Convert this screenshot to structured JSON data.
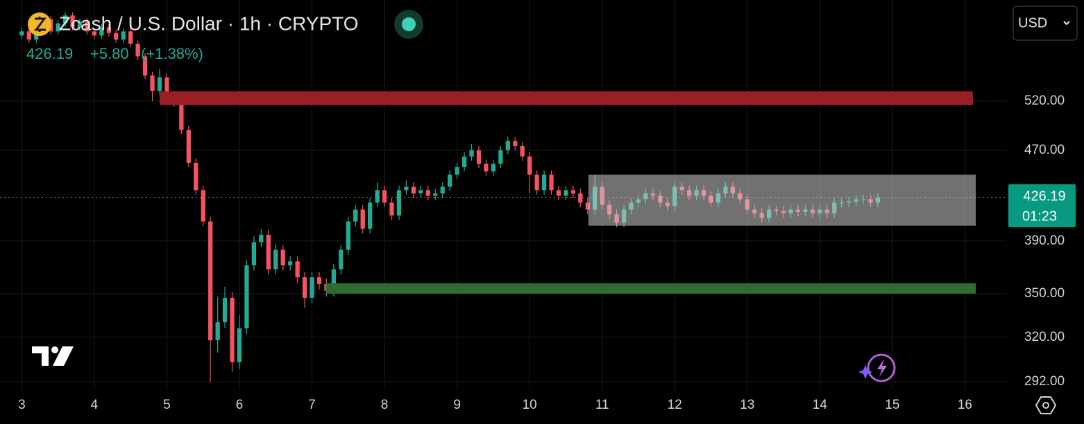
{
  "chart_data": {
    "type": "candlestick",
    "title": "Zcash / U.S. Dollar · 1h · CRYPTO",
    "last_price": 426.19,
    "change": "+5.80",
    "change_percent": "(+1.38%)",
    "countdown": "01:23",
    "currency": "USD",
    "up_color": "#22ab94",
    "down_color": "#f7525f",
    "x": [
      3.0,
      3.1,
      3.2,
      3.3,
      3.4,
      3.5,
      3.6,
      3.7,
      3.8,
      3.9,
      4.0,
      4.1,
      4.2,
      4.3,
      4.4,
      4.5,
      4.6,
      4.7,
      4.8,
      4.9,
      5.0,
      5.1,
      5.2,
      5.3,
      5.4,
      5.5,
      5.6,
      5.7,
      5.8,
      5.9,
      6.0,
      6.1,
      6.2,
      6.3,
      6.4,
      6.5,
      6.6,
      6.7,
      6.8,
      6.9,
      7.0,
      7.1,
      7.2,
      7.3,
      7.4,
      7.5,
      7.6,
      7.7,
      7.8,
      7.9,
      8.0,
      8.1,
      8.2,
      8.3,
      8.4,
      8.5,
      8.6,
      8.7,
      8.8,
      8.9,
      9.0,
      9.1,
      9.2,
      9.3,
      9.4,
      9.5,
      9.6,
      9.7,
      9.8,
      9.9,
      10.0,
      10.1,
      10.2,
      10.3,
      10.4,
      10.5,
      10.6,
      10.7,
      10.8,
      10.9,
      11.0,
      11.1,
      11.2,
      11.3,
      11.4,
      11.5,
      11.6,
      11.7,
      11.8,
      11.9,
      12.0,
      12.1,
      12.2,
      12.3,
      12.4,
      12.5,
      12.6,
      12.7,
      12.8,
      12.9,
      13.0,
      13.1,
      13.2,
      13.3,
      13.4,
      13.5,
      13.6,
      13.7,
      13.8,
      13.9,
      14.0,
      14.1,
      14.2,
      14.3,
      14.4,
      14.5,
      14.6,
      14.7,
      14.8
    ],
    "open": [
      595,
      600,
      590,
      605,
      615,
      600,
      610,
      620,
      605,
      612,
      600,
      595,
      605,
      598,
      590,
      600,
      585,
      570,
      548,
      531,
      546,
      527,
      518,
      490,
      458,
      433,
      406,
      318,
      330,
      347,
      304,
      326,
      371,
      389,
      395,
      368,
      383,
      371,
      374,
      362,
      347,
      362,
      357,
      352,
      368,
      383,
      406,
      416,
      400,
      422,
      433,
      422,
      411,
      433,
      436,
      430,
      433,
      428,
      430,
      436,
      447,
      454,
      464,
      470,
      457,
      450,
      457,
      470,
      479,
      474,
      464,
      447,
      433,
      447,
      433,
      428,
      433,
      430,
      422,
      416,
      436,
      420,
      412,
      405,
      416,
      422,
      425,
      430,
      428,
      422,
      419,
      436,
      433,
      428,
      433,
      428,
      422,
      430,
      436,
      430,
      425,
      416,
      413,
      409,
      416,
      415,
      413,
      416,
      414,
      416,
      413,
      416,
      413,
      422,
      422,
      423,
      425,
      425,
      422
    ],
    "high": [
      604,
      604,
      609,
      619,
      619,
      614,
      624,
      624,
      616,
      616,
      604,
      609,
      609,
      602,
      604,
      604,
      589,
      574,
      552,
      556,
      550,
      531,
      522,
      494,
      462,
      437,
      410,
      348,
      355,
      351,
      335,
      375,
      394,
      400,
      399,
      388,
      387,
      378,
      378,
      366,
      366,
      366,
      361,
      372,
      387,
      410,
      420,
      420,
      426,
      440,
      437,
      426,
      437,
      442,
      440,
      437,
      437,
      434,
      440,
      451,
      458,
      468,
      476,
      474,
      461,
      461,
      474,
      483,
      483,
      478,
      468,
      451,
      451,
      451,
      437,
      437,
      437,
      434,
      426,
      447,
      440,
      424,
      416,
      420,
      426,
      429,
      434,
      434,
      432,
      426,
      440,
      440,
      437,
      437,
      437,
      432,
      434,
      440,
      440,
      434,
      429,
      420,
      417,
      420,
      419,
      419,
      420,
      420,
      420,
      420,
      420,
      420,
      426,
      426,
      427,
      429,
      429,
      429,
      430
    ],
    "low": [
      591,
      586,
      586,
      601,
      596,
      596,
      606,
      601,
      601,
      596,
      591,
      591,
      594,
      586,
      586,
      581,
      566,
      544,
      520,
      527,
      523,
      514,
      486,
      454,
      429,
      402,
      292,
      310,
      326,
      298,
      300,
      322,
      367,
      385,
      364,
      364,
      367,
      367,
      358,
      340,
      343,
      353,
      348,
      348,
      364,
      379,
      402,
      396,
      396,
      418,
      418,
      407,
      407,
      429,
      426,
      426,
      424,
      424,
      426,
      432,
      443,
      450,
      460,
      453,
      446,
      446,
      453,
      466,
      470,
      460,
      430,
      429,
      429,
      429,
      424,
      424,
      426,
      418,
      412,
      412,
      416,
      408,
      401,
      401,
      412,
      418,
      421,
      424,
      418,
      415,
      415,
      429,
      424,
      424,
      424,
      418,
      418,
      426,
      426,
      421,
      412,
      409,
      405,
      405,
      411,
      409,
      409,
      410,
      410,
      409,
      409,
      409,
      409,
      418,
      418,
      419,
      421,
      418,
      418
    ],
    "close": [
      600,
      590,
      605,
      615,
      600,
      610,
      620,
      605,
      612,
      600,
      595,
      605,
      598,
      590,
      600,
      585,
      570,
      548,
      531,
      546,
      527,
      518,
      490,
      458,
      433,
      406,
      318,
      330,
      347,
      304,
      326,
      371,
      389,
      395,
      368,
      383,
      371,
      374,
      362,
      347,
      362,
      357,
      352,
      368,
      383,
      406,
      416,
      400,
      422,
      433,
      422,
      411,
      433,
      436,
      430,
      433,
      428,
      430,
      436,
      447,
      454,
      464,
      470,
      457,
      450,
      457,
      470,
      479,
      474,
      464,
      447,
      433,
      447,
      433,
      428,
      433,
      430,
      422,
      416,
      436,
      420,
      412,
      405,
      416,
      422,
      425,
      430,
      428,
      422,
      419,
      436,
      433,
      428,
      433,
      428,
      422,
      430,
      436,
      430,
      425,
      416,
      413,
      409,
      416,
      415,
      413,
      416,
      414,
      416,
      413,
      416,
      413,
      422,
      422,
      423,
      425,
      425,
      422,
      426.19
    ],
    "zones": [
      {
        "x": [
          4.9,
          16.11
        ],
        "y": [
          515.6,
          530.5
        ],
        "color": "#9b1e27"
      },
      {
        "x": [
          7.19,
          16.15
        ],
        "y": [
          350,
          357.6
        ],
        "color": "#2f6b32"
      },
      {
        "x": [
          10.81,
          16.15
        ],
        "y": [
          402.5,
          447
        ],
        "color": "rgba(205,205,205,0.55)"
      }
    ],
    "xlim": [
      2.7,
      16.57
    ],
    "xticks": [
      3,
      4,
      5,
      6,
      7,
      8,
      9,
      10,
      11,
      12,
      13,
      14,
      15,
      16
    ],
    "ylim": [
      287.5,
      640
    ],
    "yticks": [
      {
        "value": 292,
        "label": "292.00"
      },
      {
        "value": 320,
        "label": "320.00"
      },
      {
        "value": 350,
        "label": "350.00"
      },
      {
        "value": 390,
        "label": "390.00"
      },
      {
        "value": 470,
        "label": "470.00"
      },
      {
        "value": 520,
        "label": "520.00"
      }
    ],
    "log_y": true,
    "grid": true
  }
}
